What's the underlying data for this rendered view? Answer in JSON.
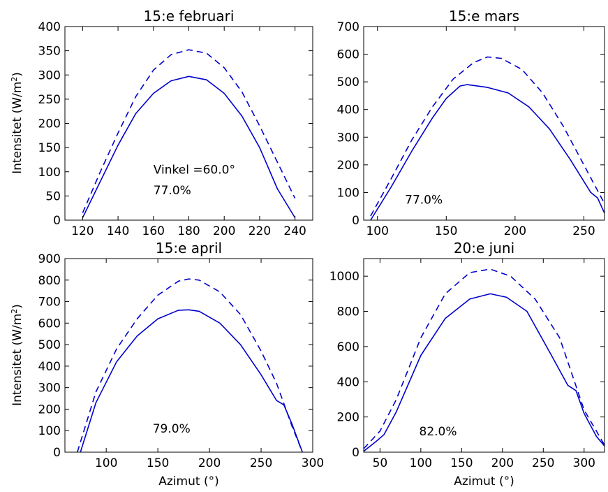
{
  "chart_data": [
    {
      "type": "line",
      "title": "15:e februari",
      "ylabel": "Intensitet (W/m$^2$)",
      "xlabel": "",
      "xlim": [
        110,
        250
      ],
      "ylim": [
        0,
        400
      ],
      "xticks": [
        120,
        140,
        160,
        180,
        200,
        220,
        240
      ],
      "yticks": [
        0,
        50,
        100,
        150,
        200,
        250,
        300,
        350,
        400
      ],
      "annotations": [
        "Vinkel =60.0°",
        "77.0%"
      ],
      "grid": false,
      "series": [
        {
          "style": "dashed",
          "color": "#0000cc",
          "x": [
            120,
            130,
            140,
            150,
            160,
            170,
            180,
            190,
            200,
            210,
            220,
            230,
            240
          ],
          "y": [
            15,
            100,
            180,
            255,
            310,
            342,
            352,
            345,
            315,
            265,
            195,
            120,
            45
          ]
        },
        {
          "style": "solid",
          "color": "#0000cc",
          "x": [
            120,
            130,
            140,
            150,
            160,
            170,
            180,
            190,
            200,
            210,
            220,
            230,
            240
          ],
          "y": [
            5,
            80,
            155,
            220,
            262,
            288,
            297,
            290,
            262,
            215,
            150,
            65,
            5
          ]
        }
      ]
    },
    {
      "type": "line",
      "title": "15:e mars",
      "ylabel": "",
      "xlabel": "",
      "xlim": [
        90,
        265
      ],
      "ylim": [
        0,
        700
      ],
      "xticks": [
        100,
        150,
        200,
        250
      ],
      "yticks": [
        0,
        100,
        200,
        300,
        400,
        500,
        600,
        700
      ],
      "annotations": [
        "77.0%"
      ],
      "grid": false,
      "series": [
        {
          "style": "dashed",
          "color": "#0000cc",
          "x": [
            95,
            110,
            125,
            140,
            155,
            170,
            180,
            190,
            205,
            220,
            235,
            250,
            265
          ],
          "y": [
            15,
            150,
            290,
            410,
            510,
            570,
            590,
            585,
            545,
            460,
            340,
            200,
            60
          ]
        },
        {
          "style": "solid",
          "color": "#0000cc",
          "x": [
            95,
            110,
            125,
            140,
            150,
            160,
            165,
            170,
            180,
            195,
            210,
            225,
            240,
            255,
            260,
            265
          ],
          "y": [
            0,
            120,
            250,
            370,
            440,
            485,
            490,
            487,
            480,
            460,
            410,
            330,
            220,
            100,
            80,
            25
          ]
        }
      ]
    },
    {
      "type": "line",
      "title": "15:e april",
      "ylabel": "Intensitet (W/m$^2$)",
      "xlabel": "Azimut (°)",
      "xlim": [
        60,
        300
      ],
      "ylim": [
        0,
        900
      ],
      "xticks": [
        100,
        150,
        200,
        250,
        300
      ],
      "yticks": [
        0,
        100,
        200,
        300,
        400,
        500,
        600,
        700,
        800,
        900
      ],
      "annotations": [
        "79.0%"
      ],
      "grid": false,
      "series": [
        {
          "style": "dashed",
          "color": "#0000cc",
          "x": [
            72,
            90,
            110,
            130,
            150,
            170,
            180,
            190,
            210,
            230,
            250,
            265,
            280,
            290
          ],
          "y": [
            0,
            280,
            480,
            620,
            730,
            795,
            805,
            800,
            745,
            640,
            470,
            320,
            120,
            0
          ]
        },
        {
          "style": "solid",
          "color": "#0000cc",
          "x": [
            75,
            90,
            110,
            130,
            150,
            170,
            180,
            190,
            210,
            230,
            250,
            265,
            272,
            280,
            290
          ],
          "y": [
            0,
            230,
            420,
            540,
            620,
            660,
            662,
            655,
            600,
            500,
            360,
            240,
            220,
            130,
            0
          ]
        }
      ]
    },
    {
      "type": "line",
      "title": "20:e juni",
      "ylabel": "",
      "xlabel": "Azimut (°)",
      "xlim": [
        30,
        325
      ],
      "ylim": [
        0,
        1100
      ],
      "xticks": [
        50,
        100,
        150,
        200,
        250,
        300
      ],
      "yticks": [
        0,
        200,
        400,
        600,
        800,
        1000
      ],
      "annotations": [
        "82.0%"
      ],
      "grid": false,
      "series": [
        {
          "style": "dashed",
          "color": "#0000cc",
          "x": [
            30,
            50,
            70,
            100,
            130,
            160,
            185,
            210,
            240,
            270,
            300,
            325
          ],
          "y": [
            20,
            120,
            300,
            650,
            900,
            1020,
            1040,
            1000,
            870,
            650,
            240,
            40
          ]
        },
        {
          "style": "solid",
          "color": "#0000cc",
          "x": [
            30,
            45,
            55,
            70,
            100,
            130,
            160,
            185,
            205,
            230,
            260,
            280,
            290,
            300,
            315,
            325
          ],
          "y": [
            5,
            60,
            100,
            230,
            550,
            760,
            870,
            900,
            880,
            800,
            550,
            380,
            350,
            220,
            90,
            35
          ]
        }
      ]
    }
  ]
}
